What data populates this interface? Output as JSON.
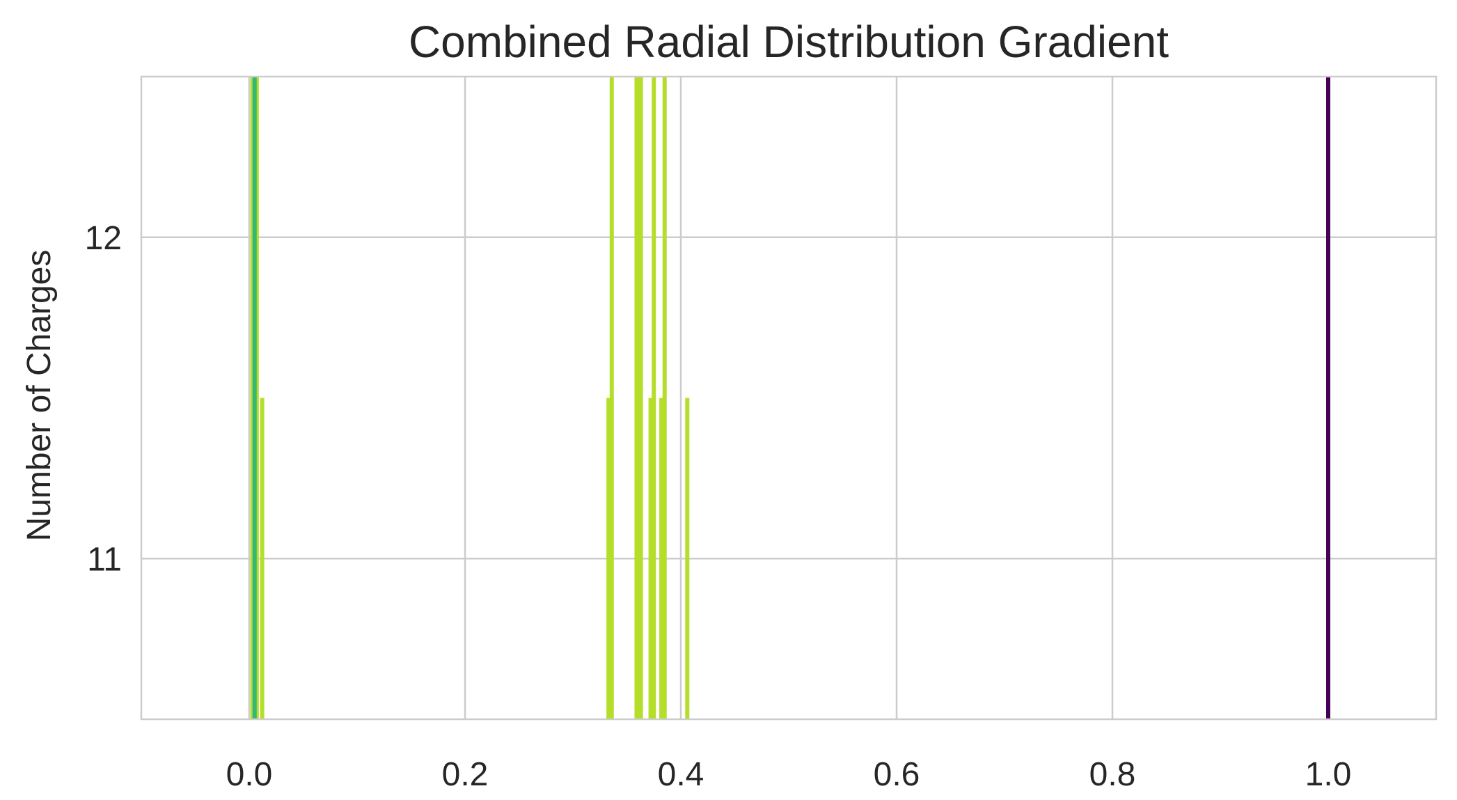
{
  "chart_data": {
    "type": "bar",
    "title": "Combined Radial Distribution Gradient",
    "xlabel": "",
    "ylabel": "Number of Charges",
    "xlim": [
      -0.1,
      1.1
    ],
    "ylim": [
      10.5,
      12.5
    ],
    "xticks": [
      0.0,
      0.2,
      0.4,
      0.6,
      0.8,
      1.0
    ],
    "xtick_labels": [
      "0.0",
      "0.2",
      "0.4",
      "0.6",
      "0.8",
      "1.0"
    ],
    "yticks": [
      11,
      12
    ],
    "ytick_labels": [
      "11",
      "12"
    ],
    "grid": true,
    "legend": false,
    "series": [
      {
        "color": "#b5de2b",
        "x": [
          0.003,
          0.005,
          0.007,
          0.012,
          0.333,
          0.336,
          0.359,
          0.361,
          0.363,
          0.372,
          0.375,
          0.382,
          0.385,
          0.406
        ],
        "values": [
          12.5,
          12.5,
          12.5,
          11.5,
          11.5,
          12.5,
          12.5,
          12.5,
          12.5,
          11.5,
          12.5,
          11.5,
          12.5,
          11.5
        ]
      },
      {
        "color": "#35b779",
        "x": [
          0.005
        ],
        "values": [
          12.5
        ]
      },
      {
        "color": "#440154",
        "x": [
          1.0
        ],
        "values": [
          12.5
        ]
      }
    ]
  }
}
